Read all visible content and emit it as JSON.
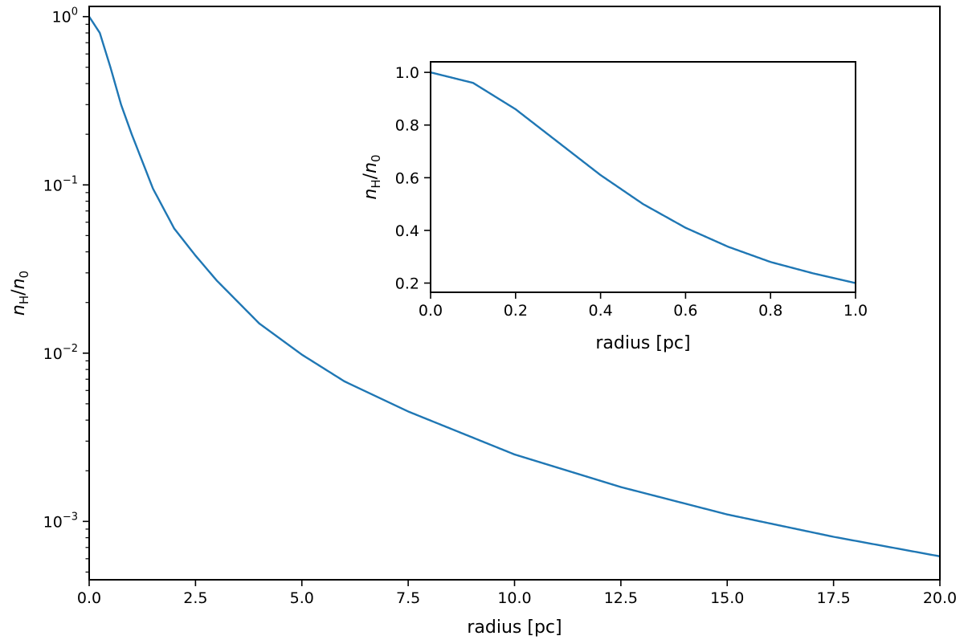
{
  "chart_data": [
    {
      "type": "line",
      "xlabel": "radius [pc]",
      "ylabel": {
        "var": "n",
        "var_sub": "H",
        "sep": "/",
        "den": "n",
        "den_sub": "0"
      },
      "yscale": "log",
      "xlim": [
        0,
        20
      ],
      "ylim": [
        0.00045,
        1.15
      ],
      "xticks": [
        0.0,
        2.5,
        5.0,
        7.5,
        10.0,
        12.5,
        15.0,
        17.5,
        20.0
      ],
      "xtick_labels": [
        "0.0",
        "2.5",
        "5.0",
        "7.5",
        "10.0",
        "12.5",
        "15.0",
        "17.5",
        "20.0"
      ],
      "yticks": [
        {
          "value": 1,
          "base": "10",
          "exp": "0"
        },
        {
          "value": 0.1,
          "base": "10",
          "exp": "−1"
        },
        {
          "value": 0.01,
          "base": "10",
          "exp": "−2"
        },
        {
          "value": 0.001,
          "base": "10",
          "exp": "−3"
        }
      ],
      "grid": false,
      "series": [
        {
          "color": "#1f77b4",
          "x": [
            0,
            0.25,
            0.5,
            0.75,
            1.0,
            1.5,
            2.0,
            2.5,
            3.0,
            4.0,
            5.0,
            6.0,
            7.5,
            10.0,
            12.5,
            15.0,
            17.5,
            20.0
          ],
          "y": [
            1.0,
            0.8,
            0.5,
            0.3,
            0.2,
            0.095,
            0.055,
            0.038,
            0.027,
            0.015,
            0.0098,
            0.0068,
            0.0045,
            0.0025,
            0.0016,
            0.0011,
            0.00081,
            0.00062
          ]
        }
      ]
    },
    {
      "type": "line",
      "inset": true,
      "xlabel": "radius [pc]",
      "ylabel": {
        "var": "n",
        "var_sub": "H",
        "sep": "/",
        "den": "n",
        "den_sub": "0"
      },
      "yscale": "linear",
      "xlim": [
        0,
        1
      ],
      "ylim": [
        0.165,
        1.04
      ],
      "xticks": [
        0.0,
        0.2,
        0.4,
        0.6,
        0.8,
        1.0
      ],
      "xtick_labels": [
        "0.0",
        "0.2",
        "0.4",
        "0.6",
        "0.8",
        "1.0"
      ],
      "yticks": [
        0.2,
        0.4,
        0.6,
        0.8,
        1.0
      ],
      "ytick_labels": [
        "0.2",
        "0.4",
        "0.6",
        "0.8",
        "1.0"
      ],
      "grid": false,
      "series": [
        {
          "color": "#1f77b4",
          "x": [
            0,
            0.1,
            0.2,
            0.3,
            0.4,
            0.5,
            0.6,
            0.7,
            0.8,
            0.9,
            1.0
          ],
          "y": [
            1.0,
            0.96,
            0.86,
            0.735,
            0.61,
            0.5,
            0.41,
            0.338,
            0.28,
            0.237,
            0.2
          ]
        }
      ]
    }
  ]
}
